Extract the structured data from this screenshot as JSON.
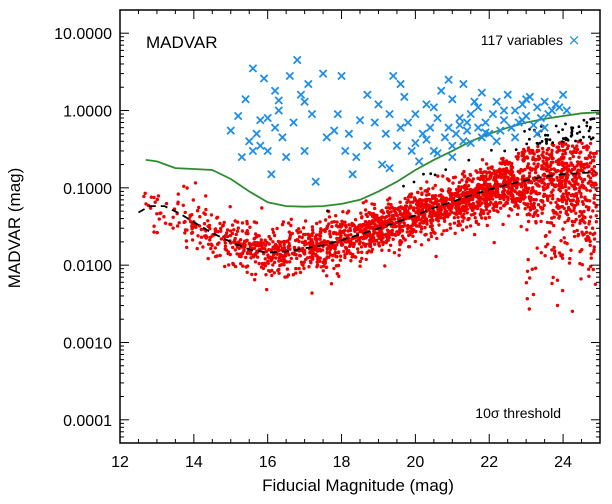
{
  "chart_data": {
    "type": "scatter",
    "title": "MADVAR",
    "xlabel": "Fiducial Magnitude (mag)",
    "ylabel": "MADVAR (mag)",
    "xlim": [
      12,
      25
    ],
    "ylim_log10": [
      -4.3,
      1.3
    ],
    "x_ticks": [
      12,
      14,
      16,
      18,
      20,
      22,
      24
    ],
    "x_tick_labels": [
      "12",
      "14",
      "16",
      "18",
      "20",
      "22",
      "24"
    ],
    "y_ticks": [
      0.0001,
      0.001,
      0.01,
      0.1,
      1,
      10
    ],
    "y_tick_labels": [
      "0.0001",
      "0.0010",
      "0.0100",
      "0.1000",
      "1.0000",
      "10.0000"
    ],
    "legend": {
      "label": "117 variables",
      "marker": "x",
      "position": "top-right"
    },
    "annotation": "10σ threshold",
    "colors": {
      "variables": "#1f8ee6",
      "threshold": "#2e8b2e",
      "median": "#000000",
      "stars": "#ee0000",
      "above": "#000000"
    },
    "threshold_curve": {
      "name": "10σ threshold",
      "x": [
        12.7,
        13.0,
        13.5,
        14.0,
        14.5,
        15.0,
        15.5,
        16.0,
        16.5,
        17.0,
        17.5,
        18.0,
        18.5,
        19.0,
        19.5,
        20.0,
        20.5,
        21.0,
        21.5,
        22.0,
        22.5,
        23.0,
        23.5,
        24.0,
        24.5,
        25.0
      ],
      "y": [
        0.23,
        0.22,
        0.18,
        0.175,
        0.17,
        0.13,
        0.09,
        0.065,
        0.058,
        0.057,
        0.058,
        0.062,
        0.07,
        0.09,
        0.12,
        0.17,
        0.23,
        0.3,
        0.4,
        0.5,
        0.6,
        0.7,
        0.78,
        0.85,
        0.92,
        0.95
      ]
    },
    "median_curve": {
      "name": "median",
      "x": [
        12.5,
        12.8,
        13.2,
        13.6,
        14.0,
        14.5,
        15.0,
        15.5,
        16.0,
        16.5,
        17.0,
        17.5,
        18.0,
        18.5,
        19.0,
        19.5,
        20.0,
        20.5,
        21.0,
        21.5,
        22.0,
        22.5,
        23.0,
        23.5,
        24.0,
        24.5,
        24.9
      ],
      "y": [
        0.048,
        0.058,
        0.058,
        0.047,
        0.036,
        0.026,
        0.02,
        0.016,
        0.0145,
        0.015,
        0.0165,
        0.018,
        0.021,
        0.025,
        0.03,
        0.036,
        0.044,
        0.055,
        0.066,
        0.08,
        0.095,
        0.11,
        0.125,
        0.14,
        0.15,
        0.155,
        0.16
      ]
    },
    "variables": {
      "name": "117 variables",
      "points": [
        [
          15.0,
          0.55
        ],
        [
          15.3,
          0.25
        ],
        [
          15.4,
          1.4
        ],
        [
          15.5,
          0.4
        ],
        [
          15.6,
          0.3
        ],
        [
          15.6,
          3.5
        ],
        [
          15.7,
          0.5
        ],
        [
          15.8,
          0.35
        ],
        [
          15.9,
          2.6
        ],
        [
          16.0,
          0.8
        ],
        [
          16.1,
          0.15
        ],
        [
          16.2,
          0.6
        ],
        [
          16.2,
          1.8
        ],
        [
          16.3,
          1.0
        ],
        [
          16.4,
          0.45
        ],
        [
          16.5,
          0.25
        ],
        [
          16.6,
          2.8
        ],
        [
          16.7,
          0.7
        ],
        [
          16.8,
          4.5
        ],
        [
          16.9,
          1.6
        ],
        [
          17.0,
          0.3
        ],
        [
          17.1,
          2.2
        ],
        [
          17.2,
          0.9
        ],
        [
          17.3,
          0.12
        ],
        [
          17.5,
          3.0
        ],
        [
          17.6,
          0.45
        ],
        [
          17.8,
          0.55
        ],
        [
          18.0,
          2.8
        ],
        [
          18.1,
          0.3
        ],
        [
          18.2,
          0.5
        ],
        [
          18.4,
          0.25
        ],
        [
          18.5,
          0.75
        ],
        [
          18.7,
          0.35
        ],
        [
          18.9,
          0.7
        ],
        [
          19.0,
          1.2
        ],
        [
          19.1,
          0.2
        ],
        [
          19.2,
          0.5
        ],
        [
          19.3,
          0.9
        ],
        [
          19.4,
          2.8
        ],
        [
          19.5,
          0.35
        ],
        [
          19.6,
          0.6
        ],
        [
          19.7,
          1.5
        ],
        [
          19.9,
          0.3
        ],
        [
          20.0,
          0.9
        ],
        [
          20.1,
          0.22
        ],
        [
          20.2,
          0.5
        ],
        [
          20.3,
          1.2
        ],
        [
          20.4,
          0.6
        ],
        [
          20.5,
          0.3
        ],
        [
          20.6,
          0.8
        ],
        [
          20.7,
          1.8
        ],
        [
          20.8,
          0.45
        ],
        [
          20.9,
          0.6
        ],
        [
          21.0,
          0.35
        ],
        [
          21.0,
          1.4
        ],
        [
          21.1,
          0.5
        ],
        [
          21.2,
          0.8
        ],
        [
          21.3,
          0.4
        ],
        [
          21.3,
          2.2
        ],
        [
          21.4,
          0.55
        ],
        [
          21.5,
          0.9
        ],
        [
          21.5,
          0.38
        ],
        [
          21.6,
          1.3
        ],
        [
          21.7,
          0.6
        ],
        [
          21.8,
          0.45
        ],
        [
          21.8,
          1.7
        ],
        [
          21.9,
          0.7
        ],
        [
          22.0,
          0.5
        ],
        [
          22.1,
          0.9
        ],
        [
          22.2,
          1.3
        ],
        [
          22.3,
          0.55
        ],
        [
          22.4,
          0.75
        ],
        [
          22.5,
          1.6
        ],
        [
          22.6,
          0.6
        ],
        [
          22.7,
          1.0
        ],
        [
          22.8,
          0.7
        ],
        [
          22.9,
          1.2
        ],
        [
          23.0,
          0.85
        ],
        [
          23.1,
          1.5
        ],
        [
          23.2,
          0.65
        ],
        [
          23.3,
          1.1
        ],
        [
          23.4,
          0.8
        ],
        [
          23.5,
          1.3
        ],
        [
          23.6,
          0.9
        ],
        [
          23.7,
          1.0
        ],
        [
          23.8,
          1.2
        ],
        [
          23.9,
          1.1
        ],
        [
          24.0,
          1.6
        ],
        [
          24.1,
          1.0
        ],
        [
          21.0,
          0.25
        ],
        [
          20.6,
          0.28
        ],
        [
          19.3,
          0.18
        ],
        [
          18.3,
          0.15
        ],
        [
          17.9,
          0.9
        ],
        [
          19.6,
          2.2
        ],
        [
          20.9,
          2.5
        ],
        [
          21.7,
          1.1
        ],
        [
          22.2,
          0.4
        ],
        [
          22.7,
          0.45
        ],
        [
          23.3,
          0.5
        ],
        [
          20.3,
          0.42
        ],
        [
          20.0,
          0.38
        ],
        [
          21.2,
          0.65
        ],
        [
          21.9,
          0.52
        ],
        [
          22.4,
          1.0
        ],
        [
          23.5,
          0.6
        ],
        [
          16.3,
          1.35
        ],
        [
          15.8,
          0.75
        ],
        [
          17.0,
          1.3
        ],
        [
          18.7,
          1.6
        ],
        [
          19.8,
          0.7
        ],
        [
          20.5,
          1.1
        ],
        [
          21.4,
          0.7
        ],
        [
          22.9,
          0.75
        ],
        [
          15.2,
          0.85
        ],
        [
          16.0,
          0.3
        ],
        [
          23.0,
          1.4
        ]
      ]
    }
  }
}
